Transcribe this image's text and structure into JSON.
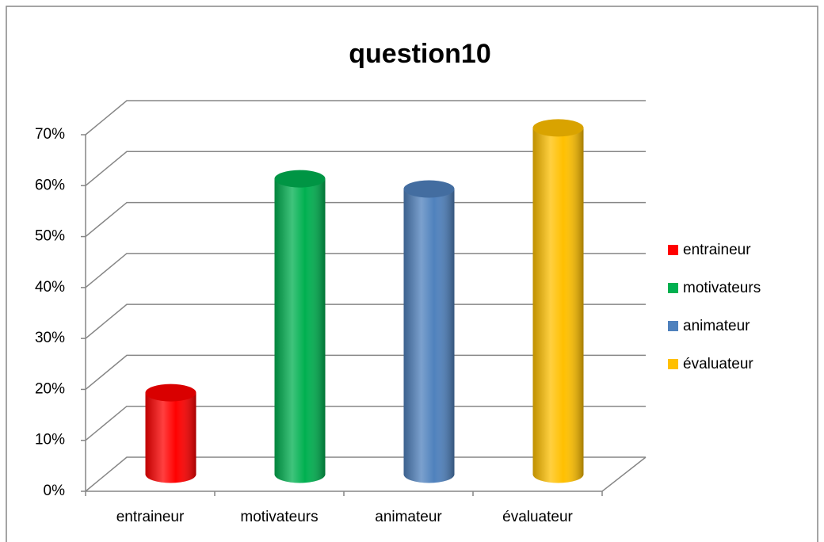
{
  "chart_data": {
    "type": "bar3d",
    "title": "question10",
    "categories": [
      "entraineur",
      "motivateurs",
      "animateur",
      "évaluateur"
    ],
    "values": [
      16,
      58,
      56,
      68
    ],
    "colors": [
      "#ff0000",
      "#00b050",
      "#4f81bd",
      "#ffc000"
    ],
    "ylim": [
      0,
      70
    ],
    "yticks": [
      {
        "value": 0,
        "label": "0%"
      },
      {
        "value": 10,
        "label": "10%"
      },
      {
        "value": 20,
        "label": "20%"
      },
      {
        "value": 30,
        "label": "30%"
      },
      {
        "value": 40,
        "label": "40%"
      },
      {
        "value": 50,
        "label": "50%"
      },
      {
        "value": 60,
        "label": "60%"
      },
      {
        "value": 70,
        "label": "70%"
      }
    ],
    "grid": true,
    "legend": "right"
  }
}
